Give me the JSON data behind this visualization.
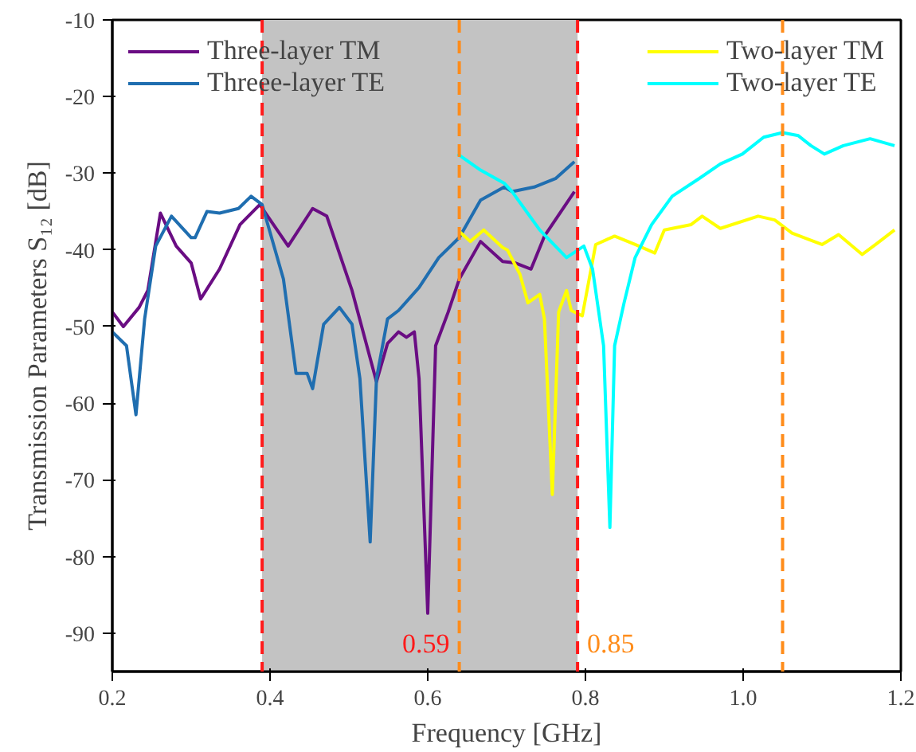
{
  "chart_data": {
    "type": "line",
    "xlabel": "Frequency [GHz]",
    "ylabel": "Transmission Parameters S₁₂ [dB]",
    "xlim": [
      0.2,
      1.2
    ],
    "ylim": [
      -95,
      -10
    ],
    "xticks": [
      {
        "value": 0.2,
        "label": "0.2"
      },
      {
        "value": 0.4,
        "label": "0.4"
      },
      {
        "value": 0.6,
        "label": "0.6"
      },
      {
        "value": 0.8,
        "label": "0.8"
      },
      {
        "value": 1.0,
        "label": "1.0"
      },
      {
        "value": 1.2,
        "label": "1.2"
      }
    ],
    "yticks": [
      -90,
      -80,
      -70,
      -60,
      -50,
      -40,
      -30,
      -20,
      -10
    ],
    "grid": false,
    "legend": "top",
    "series": [
      {
        "name": "Three-layer TM",
        "color": "#6a0d83",
        "x": [
          0.2,
          0.214,
          0.234,
          0.245,
          0.261,
          0.281,
          0.3,
          0.312,
          0.336,
          0.362,
          0.387,
          0.423,
          0.454,
          0.472,
          0.504,
          0.535,
          0.549,
          0.563,
          0.573,
          0.583,
          0.589,
          0.6,
          0.61,
          0.626,
          0.64,
          0.667,
          0.695,
          0.711,
          0.731,
          0.748,
          0.786
        ],
        "values": [
          -48.1,
          -50,
          -47.5,
          -45.3,
          -35.2,
          -39.5,
          -41.7,
          -46.4,
          -42.5,
          -36.7,
          -34.1,
          -39.5,
          -34.6,
          -35.6,
          -45.3,
          -57.2,
          -52.2,
          -50.7,
          -51.4,
          -50.7,
          -56.8,
          -87.4,
          -52.5,
          -48.1,
          -43.8,
          -38.9,
          -41.5,
          -41.7,
          -42.5,
          -38.2,
          -32.4
        ]
      },
      {
        "name": "Threee-layer TE",
        "color": "#1f6eb0",
        "x": [
          0.2,
          0.218,
          0.23,
          0.241,
          0.255,
          0.275,
          0.3,
          0.305,
          0.32,
          0.336,
          0.36,
          0.376,
          0.39,
          0.417,
          0.433,
          0.447,
          0.454,
          0.468,
          0.488,
          0.504,
          0.514,
          0.527,
          0.535,
          0.549,
          0.563,
          0.589,
          0.614,
          0.64,
          0.667,
          0.697,
          0.707,
          0.735,
          0.762,
          0.786
        ],
        "values": [
          -50.7,
          -52.5,
          -61.5,
          -49,
          -39.5,
          -35.6,
          -38.4,
          -38.4,
          -35,
          -35.2,
          -34.6,
          -33,
          -34.1,
          -43.8,
          -56.1,
          -56.1,
          -58.1,
          -49.7,
          -47.5,
          -49.7,
          -56.8,
          -78.1,
          -56.8,
          -49,
          -47.9,
          -44.9,
          -41,
          -38.4,
          -33.5,
          -31.8,
          -32.4,
          -31.8,
          -30.7,
          -28.5
        ]
      },
      {
        "name": "Two-layer TM",
        "color": "#ffff00",
        "x": [
          0.64,
          0.654,
          0.671,
          0.695,
          0.701,
          0.717,
          0.727,
          0.742,
          0.748,
          0.758,
          0.766,
          0.776,
          0.782,
          0.796,
          0.813,
          0.837,
          0.863,
          0.888,
          0.9,
          0.934,
          0.948,
          0.971,
          1.019,
          1.04,
          1.062,
          1.1,
          1.121,
          1.151,
          1.168,
          1.192
        ],
        "values": [
          -37.6,
          -38.9,
          -37.4,
          -39.7,
          -40,
          -43.2,
          -46.9,
          -45.8,
          -49,
          -71.9,
          -48.1,
          -45.3,
          -47.9,
          -48.6,
          -39.3,
          -38.2,
          -39.3,
          -40.4,
          -37.4,
          -36.7,
          -35.6,
          -37.2,
          -35.6,
          -36.1,
          -37.8,
          -39.3,
          -38,
          -40.6,
          -39.3,
          -37.4
        ]
      },
      {
        "name": "Two-layer TE",
        "color": "#00ffff",
        "x": [
          0.638,
          0.667,
          0.697,
          0.707,
          0.742,
          0.776,
          0.798,
          0.809,
          0.823,
          0.831,
          0.837,
          0.849,
          0.863,
          0.884,
          0.91,
          0.944,
          0.971,
          0.999,
          1.026,
          1.05,
          1.07,
          1.086,
          1.103,
          1.127,
          1.161,
          1.192
        ],
        "values": [
          -27.5,
          -29.6,
          -31.3,
          -32.4,
          -37.4,
          -41,
          -39.5,
          -42.5,
          -52.5,
          -76.2,
          -52.5,
          -46.9,
          -41,
          -36.7,
          -33,
          -30.7,
          -28.8,
          -27.5,
          -25.3,
          -24.7,
          -25.1,
          -26.4,
          -27.5,
          -26.4,
          -25.5,
          -26.4
        ]
      }
    ],
    "ref_lines": [
      {
        "axis": "x",
        "value": 0.39,
        "color": "#ff1a1a",
        "line_style": "dashed"
      },
      {
        "axis": "x",
        "value": 0.79,
        "color": "#ff1a1a",
        "line_style": "dashed"
      },
      {
        "axis": "x",
        "value": 0.64,
        "color": "#ff8c1a",
        "line_style": "dashed"
      },
      {
        "axis": "x",
        "value": 1.05,
        "color": "#ff8c1a",
        "line_style": "dashed"
      }
    ],
    "bands": [
      {
        "axis": "x",
        "from": 0.39,
        "to": 0.79,
        "color": "#c3c3c3"
      }
    ],
    "annotations": [
      "0.59",
      "0.85"
    ]
  }
}
